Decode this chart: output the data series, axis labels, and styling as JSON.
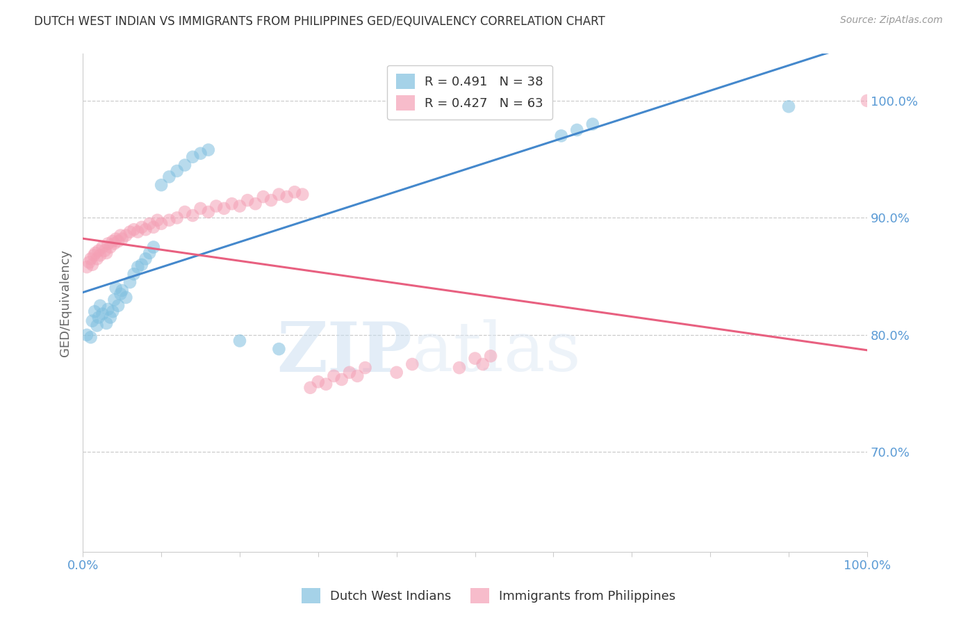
{
  "title": "DUTCH WEST INDIAN VS IMMIGRANTS FROM PHILIPPINES GED/EQUIVALENCY CORRELATION CHART",
  "source": "Source: ZipAtlas.com",
  "ylabel": "GED/Equivalency",
  "ytick_labels": [
    "100.0%",
    "90.0%",
    "80.0%",
    "70.0%"
  ],
  "ytick_vals": [
    1.0,
    0.9,
    0.8,
    0.7
  ],
  "xlim": [
    0.0,
    1.0
  ],
  "ylim": [
    0.615,
    1.04
  ],
  "blue_color": "#7fbfdf",
  "pink_color": "#f4a0b5",
  "blue_line_color": "#4488cc",
  "pink_line_color": "#e86080",
  "legend_blue_R": "R = 0.491",
  "legend_blue_N": "N = 38",
  "legend_pink_R": "R = 0.427",
  "legend_pink_N": "N = 63",
  "blue_scatter_x": [
    0.005,
    0.01,
    0.012,
    0.015,
    0.018,
    0.02,
    0.022,
    0.025,
    0.03,
    0.032,
    0.035,
    0.038,
    0.04,
    0.042,
    0.045,
    0.048,
    0.05,
    0.055,
    0.06,
    0.065,
    0.07,
    0.075,
    0.08,
    0.085,
    0.09,
    0.1,
    0.11,
    0.12,
    0.13,
    0.14,
    0.15,
    0.16,
    0.2,
    0.25,
    0.61,
    0.63,
    0.65,
    0.9
  ],
  "blue_scatter_y": [
    0.8,
    0.798,
    0.812,
    0.82,
    0.808,
    0.815,
    0.825,
    0.818,
    0.81,
    0.822,
    0.815,
    0.82,
    0.83,
    0.84,
    0.825,
    0.835,
    0.838,
    0.832,
    0.845,
    0.852,
    0.858,
    0.86,
    0.865,
    0.87,
    0.875,
    0.928,
    0.935,
    0.94,
    0.945,
    0.952,
    0.955,
    0.958,
    0.795,
    0.788,
    0.97,
    0.975,
    0.98,
    0.995
  ],
  "pink_scatter_x": [
    0.005,
    0.008,
    0.01,
    0.012,
    0.014,
    0.016,
    0.018,
    0.02,
    0.022,
    0.025,
    0.028,
    0.03,
    0.032,
    0.035,
    0.038,
    0.04,
    0.042,
    0.045,
    0.048,
    0.05,
    0.055,
    0.06,
    0.065,
    0.07,
    0.075,
    0.08,
    0.085,
    0.09,
    0.095,
    0.1,
    0.11,
    0.12,
    0.13,
    0.14,
    0.15,
    0.16,
    0.17,
    0.18,
    0.19,
    0.2,
    0.21,
    0.22,
    0.23,
    0.24,
    0.25,
    0.26,
    0.27,
    0.28,
    0.29,
    0.3,
    0.31,
    0.32,
    0.33,
    0.34,
    0.35,
    0.36,
    0.4,
    0.42,
    0.48,
    0.5,
    0.51,
    0.52,
    1.0
  ],
  "pink_scatter_y": [
    0.858,
    0.862,
    0.865,
    0.86,
    0.868,
    0.87,
    0.865,
    0.872,
    0.868,
    0.875,
    0.872,
    0.87,
    0.878,
    0.875,
    0.88,
    0.878,
    0.882,
    0.88,
    0.885,
    0.882,
    0.885,
    0.888,
    0.89,
    0.888,
    0.892,
    0.89,
    0.895,
    0.892,
    0.898,
    0.895,
    0.898,
    0.9,
    0.905,
    0.902,
    0.908,
    0.905,
    0.91,
    0.908,
    0.912,
    0.91,
    0.915,
    0.912,
    0.918,
    0.915,
    0.92,
    0.918,
    0.922,
    0.92,
    0.755,
    0.76,
    0.758,
    0.765,
    0.762,
    0.768,
    0.765,
    0.772,
    0.768,
    0.775,
    0.772,
    0.78,
    0.775,
    0.782,
    1.0
  ],
  "watermark_zip": "ZIP",
  "watermark_atlas": "atlas",
  "background_color": "#ffffff",
  "grid_color": "#cccccc",
  "title_color": "#333333",
  "axis_label_color": "#5b9bd5",
  "ytick_color": "#5b9bd5"
}
